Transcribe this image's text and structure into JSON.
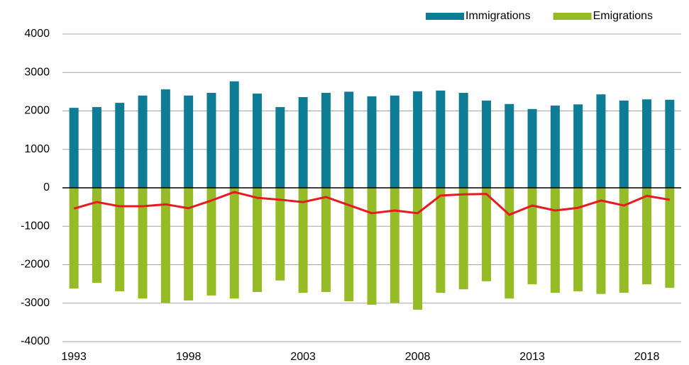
{
  "chart_data": {
    "type": "bar-line",
    "categories": [
      "1993",
      null,
      null,
      null,
      null,
      "1998",
      null,
      null,
      null,
      null,
      "2003",
      null,
      null,
      null,
      null,
      "2008",
      null,
      null,
      null,
      null,
      "2013",
      null,
      null,
      null,
      null,
      "2018",
      null
    ],
    "series": [
      {
        "name": "Immigrations",
        "type": "bar",
        "color": "#0f7c96",
        "values": [
          2080,
          2100,
          2210,
          2400,
          2560,
          2400,
          2470,
          2770,
          2450,
          2100,
          2360,
          2470,
          2500,
          2380,
          2400,
          2510,
          2530,
          2470,
          2270,
          2180,
          2050,
          2140,
          2170,
          2430,
          2270,
          2300,
          2290
        ]
      },
      {
        "name": "Emigrations",
        "type": "bar",
        "color": "#95bb26",
        "values": [
          -2620,
          -2470,
          -2690,
          -2880,
          -2990,
          -2930,
          -2800,
          -2880,
          -2710,
          -2410,
          -2730,
          -2710,
          -2950,
          -3040,
          -2990,
          -3170,
          -2730,
          -2640,
          -2430,
          -2880,
          -2510,
          -2730,
          -2690,
          -2760,
          -2730,
          -2510,
          -2600
        ]
      },
      {
        "type": "line",
        "color": "#e8191f",
        "values": [
          -540,
          -370,
          -480,
          -480,
          -430,
          -530,
          -330,
          -110,
          -260,
          -310,
          -370,
          -240,
          -450,
          -660,
          -590,
          -660,
          -200,
          -170,
          -160,
          -700,
          -460,
          -590,
          -520,
          -330,
          -460,
          -210,
          -310
        ]
      }
    ],
    "ylim": [
      -4000,
      4000
    ],
    "yticks": [
      -4000,
      -3000,
      -2000,
      -1000,
      0,
      1000,
      2000,
      3000,
      4000
    ],
    "grid": true,
    "legend": "top-right"
  }
}
